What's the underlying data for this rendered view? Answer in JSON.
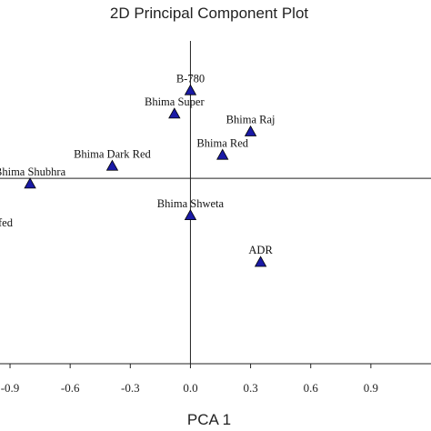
{
  "chart_data": {
    "type": "scatter",
    "title": "2D Principal Component Plot",
    "xlabel": "PCA 1",
    "ylabel": "",
    "xlim": [
      -0.95,
      1.2
    ],
    "ylim": [
      -1.35,
      1.0
    ],
    "x_ticks": [
      -0.9,
      -0.6,
      -0.3,
      0.0,
      0.3,
      0.6,
      0.9
    ],
    "x_tick_labels": [
      "-0.9",
      "-0.6",
      "-0.3",
      "0.0",
      "0.3",
      "0.6",
      "0.9"
    ],
    "marker": "triangle",
    "marker_color": "#1a1aa6",
    "points": [
      {
        "label": "B-780",
        "x": 0.0,
        "y": 0.64
      },
      {
        "label": "Bhima Super",
        "x": -0.08,
        "y": 0.47
      },
      {
        "label": "Bhima Raj",
        "x": 0.3,
        "y": 0.34
      },
      {
        "label": "Bhima Red",
        "x": 0.16,
        "y": 0.17
      },
      {
        "label": "Bhima Dark Red",
        "x": -0.39,
        "y": 0.09
      },
      {
        "label": "Bhima Shubhra",
        "x": -0.8,
        "y": -0.04
      },
      {
        "label": "Bhima Shweta",
        "x": 0.0,
        "y": -0.27
      },
      {
        "label": "ADR",
        "x": 0.35,
        "y": -0.61
      },
      {
        "label": "fed",
        "x": -1.0,
        "y": -0.41
      }
    ]
  }
}
